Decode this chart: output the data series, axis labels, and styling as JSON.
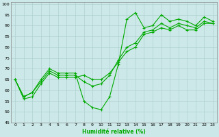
{
  "xlabel": "Humidité relative (%)",
  "xlim": [
    -0.5,
    23.5
  ],
  "ylim": [
    45,
    101
  ],
  "yticks": [
    45,
    50,
    55,
    60,
    65,
    70,
    75,
    80,
    85,
    90,
    95,
    100
  ],
  "xticks": [
    0,
    1,
    2,
    3,
    4,
    5,
    6,
    7,
    8,
    9,
    10,
    11,
    12,
    13,
    14,
    15,
    16,
    17,
    18,
    19,
    20,
    21,
    22,
    23
  ],
  "background_color": "#cce8e8",
  "grid_color": "#aacccc",
  "line_color": "#00aa00",
  "series": [
    [
      65,
      57,
      59,
      65,
      70,
      68,
      68,
      68,
      55,
      52,
      51,
      57,
      72,
      93,
      96,
      89,
      90,
      95,
      92,
      93,
      92,
      90,
      94,
      92
    ],
    [
      65,
      57,
      59,
      64,
      69,
      67,
      67,
      67,
      64,
      62,
      63,
      67,
      74,
      80,
      82,
      87,
      88,
      91,
      89,
      91,
      90,
      89,
      92,
      91
    ],
    [
      65,
      56,
      57,
      63,
      68,
      66,
      66,
      66,
      67,
      65,
      65,
      68,
      73,
      78,
      80,
      86,
      87,
      89,
      88,
      90,
      88,
      88,
      91,
      91
    ]
  ]
}
